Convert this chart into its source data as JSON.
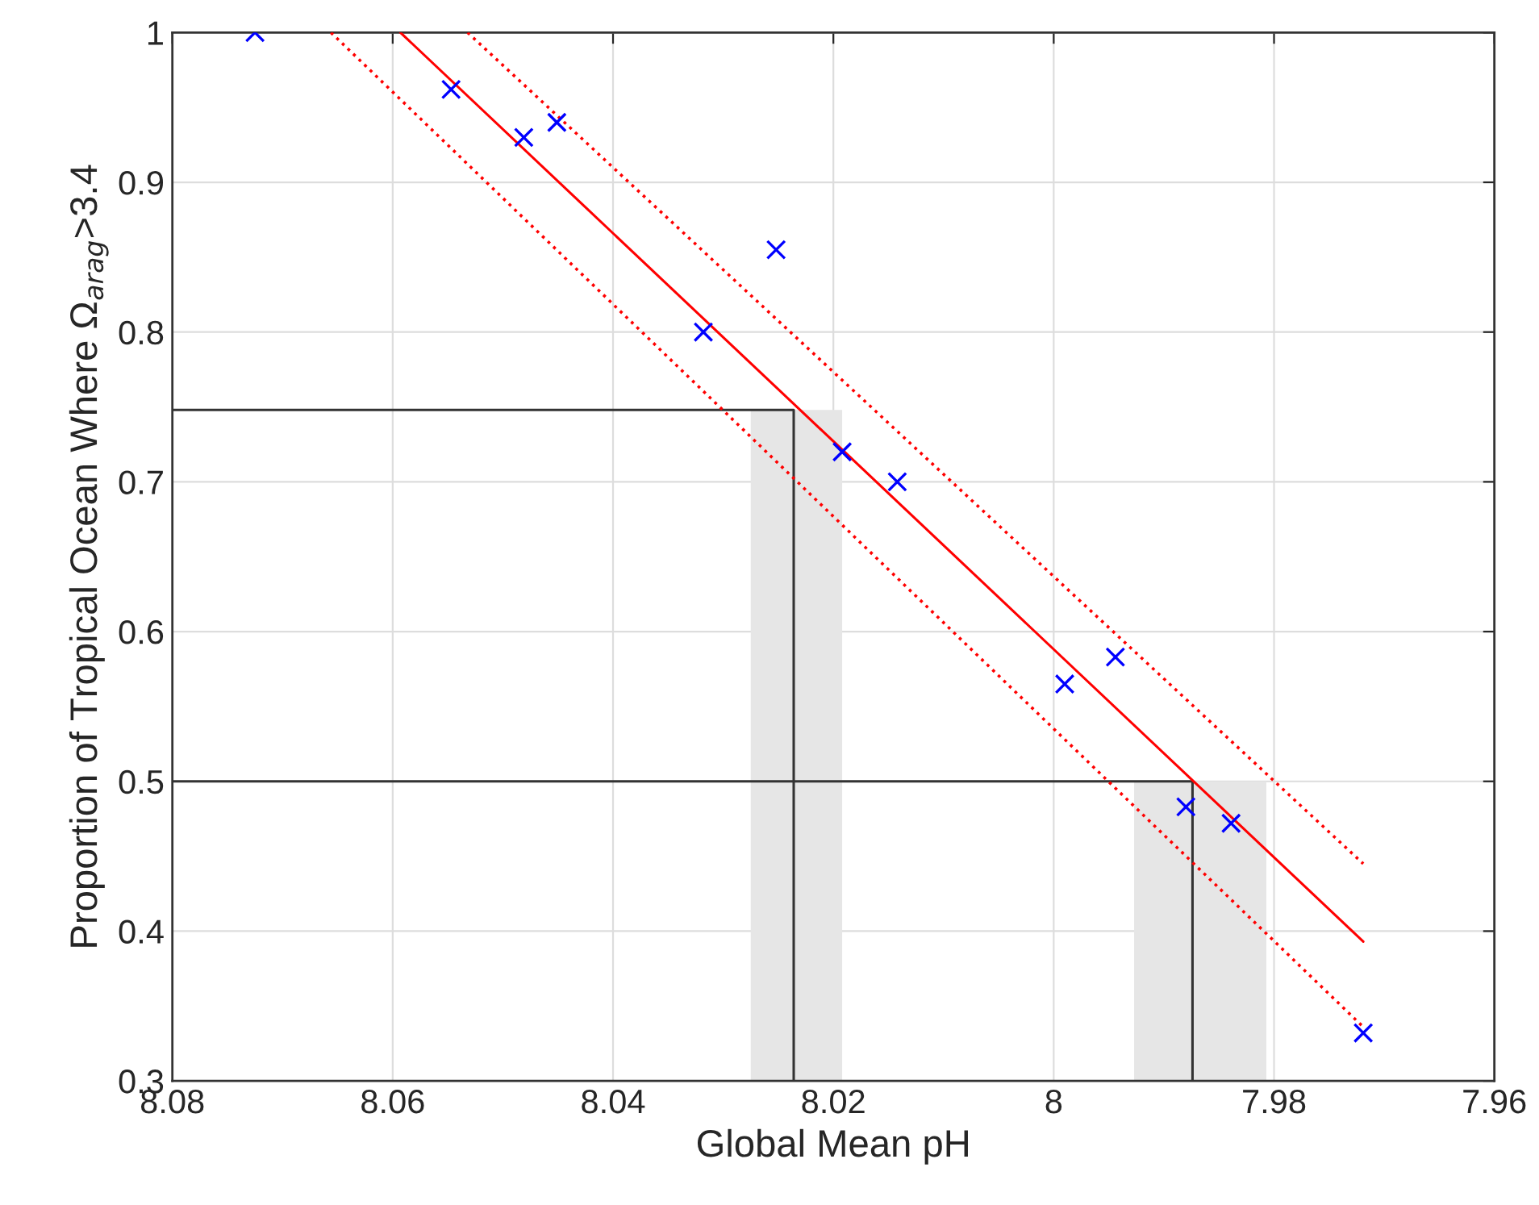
{
  "chart_data": {
    "type": "scatter",
    "xlabel": "Global Mean pH",
    "ylabel": "Proportion of Tropical Ocean Where Ω$_{arag}$>3.4",
    "xlim": [
      8.08,
      7.96
    ],
    "xticks": [
      8.08,
      8.06,
      8.04,
      8.02,
      8,
      7.98,
      7.96
    ],
    "ylim": [
      0.3,
      1
    ],
    "yticks": [
      0.3,
      0.4,
      0.5,
      0.6,
      0.7,
      0.8,
      0.9,
      1
    ],
    "grid": true,
    "series": [
      {
        "type": "area",
        "color": "#e6e6e6",
        "x": [
          8.0275,
          8.0192
        ],
        "values": [
          0.748,
          0.748
        ]
      },
      {
        "type": "area",
        "color": "#e6e6e6",
        "x": [
          7.9927,
          7.9807
        ],
        "values": [
          0.5,
          0.5
        ]
      },
      {
        "type": "line",
        "color": "#333333",
        "line_style": "solid",
        "marker": "none",
        "x": [
          8.08,
          8.0236,
          8.0236
        ],
        "values": [
          0.748,
          0.748,
          0.3
        ]
      },
      {
        "type": "line",
        "color": "#333333",
        "line_style": "solid",
        "marker": "none",
        "x": [
          8.08,
          7.9874,
          7.9874
        ],
        "values": [
          0.5,
          0.5,
          0.3
        ]
      },
      {
        "type": "line",
        "color": "#ff0000",
        "line_style": "solid",
        "marker": "none",
        "x": [
          8.0593,
          7.9719
        ],
        "values": [
          1.0,
          0.393
        ]
      },
      {
        "type": "line",
        "color": "#ff0000",
        "line_style": "dotted",
        "marker": "none",
        "x": [
          8.0532,
          7.9719
        ],
        "values": [
          1.0,
          0.445
        ]
      },
      {
        "type": "line",
        "color": "#ff0000",
        "line_style": "dotted",
        "marker": "none",
        "x": [
          8.0656,
          7.9719
        ],
        "values": [
          1.0,
          0.336
        ]
      },
      {
        "color": "#0000ff",
        "marker": "cross",
        "x": [
          8.0725,
          8.0547,
          8.0481,
          8.0451,
          8.0318,
          8.0252,
          8.0192,
          8.0142,
          7.999,
          7.9944,
          7.988,
          7.9839,
          7.9719
        ],
        "values": [
          1.0,
          0.962,
          0.93,
          0.94,
          0.8,
          0.855,
          0.72,
          0.7,
          0.565,
          0.583,
          0.483,
          0.472,
          0.332
        ]
      }
    ]
  }
}
